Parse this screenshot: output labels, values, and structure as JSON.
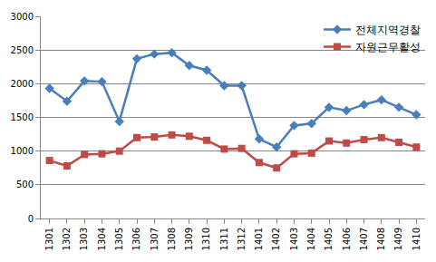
{
  "chart_data": {
    "type": "line",
    "categories": [
      "1301",
      "1302",
      "1303",
      "1304",
      "1305",
      "1306",
      "1307",
      "1308",
      "1309",
      "1310",
      "1311",
      "1312",
      "1401",
      "1402",
      "1403",
      "1404",
      "1405",
      "1406",
      "1407",
      "1408",
      "1409",
      "1410"
    ],
    "series": [
      {
        "name": "전체지역경찰",
        "color": "#4a7ebb",
        "marker": "diamond",
        "line_style": "solid",
        "values": [
          1930,
          1740,
          2040,
          2030,
          1440,
          2370,
          2440,
          2460,
          2270,
          2200,
          1970,
          1970,
          1180,
          1060,
          1380,
          1410,
          1650,
          1600,
          1690,
          1760,
          1650,
          1540
        ]
      },
      {
        "name": "자원근무활성",
        "color": "#be4b48",
        "marker": "square",
        "line_style": "solid",
        "values": [
          860,
          780,
          950,
          960,
          1000,
          1200,
          1210,
          1240,
          1220,
          1160,
          1030,
          1040,
          830,
          750,
          960,
          970,
          1150,
          1120,
          1170,
          1200,
          1130,
          1060
        ]
      }
    ],
    "ylim": [
      0,
      3000
    ],
    "yticks": [
      0,
      500,
      1000,
      1500,
      2000,
      2500,
      3000
    ],
    "grid": true,
    "legend": "top right"
  }
}
